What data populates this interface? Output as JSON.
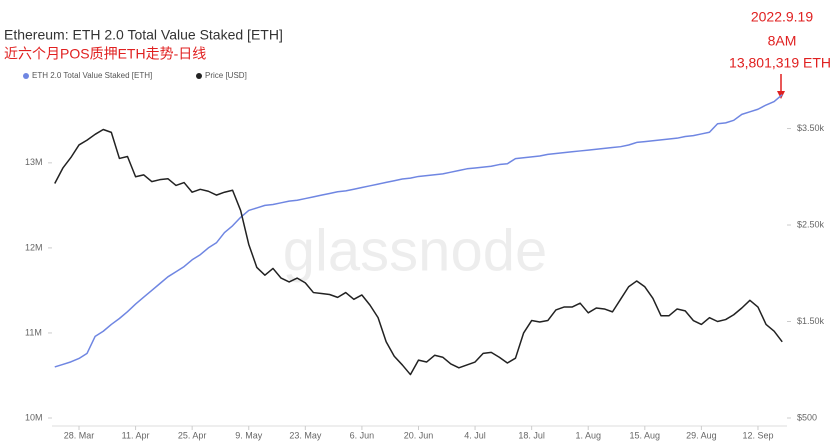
{
  "chart_data": {
    "type": "line",
    "title": "Ethereum: ETH 2.0 Total Value Staked [ETH]",
    "subtitle": "近六个月POS质押ETH走势-日线",
    "watermark": "glassnode",
    "annotations": [
      "2022.9.19",
      "8AM",
      "13,801,319 ETH"
    ],
    "categories": [
      null,
      null,
      null,
      "28. Mar",
      null,
      null,
      null,
      null,
      null,
      null,
      "11. Apr",
      null,
      null,
      null,
      null,
      null,
      null,
      "25. Apr",
      null,
      null,
      null,
      null,
      null,
      null,
      "9. May",
      null,
      null,
      null,
      null,
      null,
      null,
      "23. May",
      null,
      null,
      null,
      null,
      null,
      null,
      "6. Jun",
      null,
      null,
      null,
      null,
      null,
      null,
      "20. Jun",
      null,
      null,
      null,
      null,
      null,
      null,
      "4. Jul",
      null,
      null,
      null,
      null,
      null,
      null,
      "18. Jul",
      null,
      null,
      null,
      null,
      null,
      null,
      "1. Aug",
      null,
      null,
      null,
      null,
      null,
      null,
      "15. Aug",
      null,
      null,
      null,
      null,
      null,
      null,
      "29. Aug",
      null,
      null,
      null,
      null,
      null,
      null,
      "12. Sep",
      null,
      null,
      null
    ],
    "series": [
      {
        "name": "ETH 2.0 Total Value Staked [ETH]",
        "color": "#6f86e2",
        "axis": "y",
        "values": [
          10600000,
          10630000,
          10660000,
          10700000,
          10760000,
          10960000,
          11020000,
          11100000,
          11170000,
          11250000,
          11340000,
          11420000,
          11500000,
          11580000,
          11660000,
          11720000,
          11780000,
          11860000,
          11920000,
          12000000,
          12060000,
          12180000,
          12260000,
          12360000,
          12440000,
          12470000,
          12500000,
          12510000,
          12530000,
          12550000,
          12560000,
          12580000,
          12600000,
          12620000,
          12640000,
          12660000,
          12670000,
          12690000,
          12710000,
          12730000,
          12750000,
          12770000,
          12790000,
          12810000,
          12820000,
          12840000,
          12850000,
          12860000,
          12870000,
          12890000,
          12910000,
          12930000,
          12940000,
          12950000,
          12960000,
          12980000,
          12990000,
          13050000,
          13060000,
          13070000,
          13080000,
          13100000,
          13110000,
          13120000,
          13130000,
          13140000,
          13150000,
          13160000,
          13170000,
          13180000,
          13190000,
          13210000,
          13240000,
          13250000,
          13260000,
          13270000,
          13280000,
          13290000,
          13310000,
          13320000,
          13340000,
          13360000,
          13460000,
          13470000,
          13500000,
          13570000,
          13600000,
          13630000,
          13680000,
          13720000,
          13801319
        ]
      },
      {
        "name": "Price [USD]",
        "color": "#222222",
        "axis": "y2",
        "values": [
          2930,
          3090,
          3200,
          3330,
          3380,
          3440,
          3490,
          3460,
          3190,
          3210,
          3000,
          3020,
          2950,
          2970,
          2980,
          2910,
          2940,
          2840,
          2870,
          2850,
          2810,
          2840,
          2860,
          2650,
          2300,
          2060,
          1980,
          2050,
          1950,
          1910,
          1950,
          1900,
          1800,
          1790,
          1780,
          1750,
          1800,
          1730,
          1775,
          1670,
          1540,
          1290,
          1140,
          1050,
          950,
          1100,
          1080,
          1150,
          1130,
          1060,
          1020,
          1050,
          1080,
          1170,
          1180,
          1130,
          1070,
          1120,
          1380,
          1510,
          1495,
          1510,
          1620,
          1650,
          1650,
          1690,
          1590,
          1640,
          1630,
          1600,
          1730,
          1860,
          1920,
          1860,
          1740,
          1560,
          1560,
          1630,
          1610,
          1510,
          1470,
          1540,
          1500,
          1520,
          1570,
          1640,
          1720,
          1650,
          1470,
          1400,
          1290
        ]
      }
    ],
    "ylim": [
      10000000,
      13880000
    ],
    "yticks": [
      {
        "value": 10000000,
        "label": "10M"
      },
      {
        "value": 11000000,
        "label": "11M"
      },
      {
        "value": 12000000,
        "label": "12M"
      },
      {
        "value": 13000000,
        "label": "13M"
      }
    ],
    "y2lim": [
      500,
      3920
    ],
    "y2ticks": [
      {
        "value": 500,
        "label": "$500"
      },
      {
        "value": 1500,
        "label": "$1.50k"
      },
      {
        "value": 2500,
        "label": "$2.50k"
      },
      {
        "value": 3500,
        "label": "$3.50k"
      }
    ],
    "grid": false
  }
}
